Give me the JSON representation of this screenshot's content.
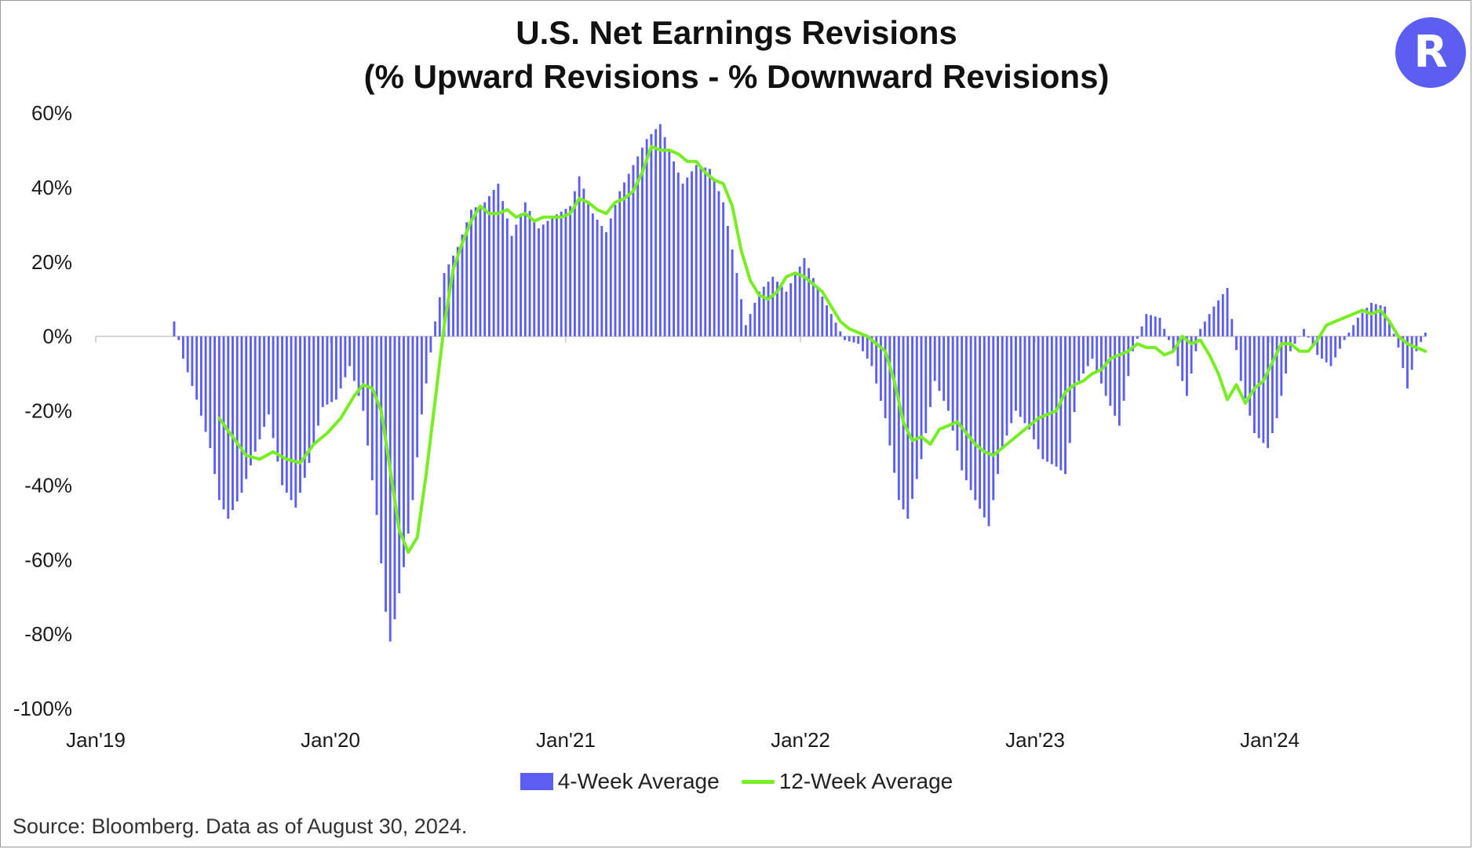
{
  "title_line1": "U.S. Net Earnings Revisions",
  "title_line2": "(% Upward Revisions - % Downward Revisions)",
  "logo_letter": "R",
  "logo_color": "#5b5ef0",
  "source": "Source: Bloomberg. Data as of August 30, 2024.",
  "chart_data": {
    "type": "bar",
    "xlabel": "",
    "ylabel": "",
    "ylim": [
      -100,
      60
    ],
    "yticks": [
      60,
      40,
      20,
      0,
      -20,
      -40,
      -60,
      -80,
      -100
    ],
    "ytick_labels": [
      "60%",
      "40%",
      "20%",
      "0%",
      "-20%",
      "-40%",
      "-60%",
      "-80%",
      "-100%"
    ],
    "xlim": [
      "2019-01-01",
      "2024-09-01"
    ],
    "xticks": [
      "2019-01-01",
      "2020-01-01",
      "2021-01-01",
      "2022-01-01",
      "2023-01-01",
      "2024-01-01"
    ],
    "xtick_labels": [
      "Jan'19",
      "Jan'20",
      "Jan'21",
      "Jan'22",
      "Jan'23",
      "Jan'24"
    ],
    "legend_position": "bottom",
    "grid": false,
    "series": [
      {
        "name": "4-Week Average",
        "kind": "bar",
        "color": "#5b5ef0",
        "points": [
          [
            "2019-05-03",
            4
          ],
          [
            "2019-05-17",
            -6
          ],
          [
            "2019-06-07",
            -17
          ],
          [
            "2019-06-28",
            -30
          ],
          [
            "2019-07-12",
            -44
          ],
          [
            "2019-07-26",
            -49
          ],
          [
            "2019-08-16",
            -42
          ],
          [
            "2019-09-06",
            -31
          ],
          [
            "2019-09-27",
            -21
          ],
          [
            "2019-10-18",
            -40
          ],
          [
            "2019-11-08",
            -46
          ],
          [
            "2019-11-29",
            -34
          ],
          [
            "2019-12-20",
            -19
          ],
          [
            "2020-01-10",
            -17
          ],
          [
            "2020-01-31",
            -8
          ],
          [
            "2020-02-21",
            -20
          ],
          [
            "2020-03-13",
            -48
          ],
          [
            "2020-03-27",
            -74
          ],
          [
            "2020-04-03",
            -82
          ],
          [
            "2020-04-10",
            -76
          ],
          [
            "2020-04-24",
            -62
          ],
          [
            "2020-05-08",
            -44
          ],
          [
            "2020-05-22",
            -21
          ],
          [
            "2020-06-12",
            4
          ],
          [
            "2020-06-26",
            17
          ],
          [
            "2020-07-17",
            24
          ],
          [
            "2020-08-07",
            34
          ],
          [
            "2020-08-28",
            36
          ],
          [
            "2020-09-18",
            41
          ],
          [
            "2020-10-09",
            27
          ],
          [
            "2020-10-30",
            36
          ],
          [
            "2020-11-20",
            29
          ],
          [
            "2020-12-11",
            32
          ],
          [
            "2021-01-08",
            35
          ],
          [
            "2021-01-22",
            43
          ],
          [
            "2021-02-12",
            33
          ],
          [
            "2021-03-05",
            28
          ],
          [
            "2021-03-26",
            39
          ],
          [
            "2021-04-16",
            46
          ],
          [
            "2021-05-07",
            53
          ],
          [
            "2021-05-28",
            57
          ],
          [
            "2021-06-11",
            50
          ],
          [
            "2021-07-02",
            41
          ],
          [
            "2021-07-23",
            46
          ],
          [
            "2021-08-13",
            45
          ],
          [
            "2021-09-03",
            36
          ],
          [
            "2021-09-24",
            17
          ],
          [
            "2021-10-08",
            3
          ],
          [
            "2021-10-29",
            12
          ],
          [
            "2021-11-19",
            16
          ],
          [
            "2021-12-10",
            12
          ],
          [
            "2022-01-07",
            21
          ],
          [
            "2022-01-28",
            13
          ],
          [
            "2022-02-18",
            6
          ],
          [
            "2022-03-11",
            -1
          ],
          [
            "2022-04-01",
            -2
          ],
          [
            "2022-04-22",
            -8
          ],
          [
            "2022-05-13",
            -22
          ],
          [
            "2022-06-03",
            -44
          ],
          [
            "2022-06-17",
            -49
          ],
          [
            "2022-07-08",
            -33
          ],
          [
            "2022-07-29",
            -12
          ],
          [
            "2022-08-19",
            -20
          ],
          [
            "2022-09-09",
            -36
          ],
          [
            "2022-09-30",
            -44
          ],
          [
            "2022-10-21",
            -51
          ],
          [
            "2022-11-11",
            -30
          ],
          [
            "2022-12-02",
            -20
          ],
          [
            "2022-12-23",
            -25
          ],
          [
            "2023-01-13",
            -33
          ],
          [
            "2023-02-03",
            -35
          ],
          [
            "2023-02-17",
            -37
          ],
          [
            "2023-03-10",
            -12
          ],
          [
            "2023-03-31",
            -6
          ],
          [
            "2023-04-21",
            -16
          ],
          [
            "2023-05-12",
            -24
          ],
          [
            "2023-06-02",
            -4
          ],
          [
            "2023-06-23",
            6
          ],
          [
            "2023-07-14",
            5
          ],
          [
            "2023-08-04",
            -4
          ],
          [
            "2023-08-25",
            -16
          ],
          [
            "2023-09-15",
            2
          ],
          [
            "2023-10-06",
            8
          ],
          [
            "2023-10-27",
            13
          ],
          [
            "2023-11-17",
            -12
          ],
          [
            "2023-12-08",
            -26
          ],
          [
            "2023-12-29",
            -30
          ],
          [
            "2024-01-12",
            -22
          ],
          [
            "2024-02-02",
            -4
          ],
          [
            "2024-02-23",
            2
          ],
          [
            "2024-03-15",
            -5
          ],
          [
            "2024-04-05",
            -8
          ],
          [
            "2024-04-26",
            -1
          ],
          [
            "2024-05-17",
            5
          ],
          [
            "2024-06-07",
            9
          ],
          [
            "2024-06-28",
            8
          ],
          [
            "2024-07-19",
            -3
          ],
          [
            "2024-08-02",
            -14
          ],
          [
            "2024-08-16",
            -4
          ],
          [
            "2024-08-30",
            1
          ]
        ]
      },
      {
        "name": "12-Week Average",
        "kind": "line",
        "color": "#77ee22",
        "points": [
          [
            "2019-07-12",
            -22
          ],
          [
            "2019-08-02",
            -27
          ],
          [
            "2019-08-23",
            -32
          ],
          [
            "2019-09-13",
            -33
          ],
          [
            "2019-10-04",
            -31
          ],
          [
            "2019-10-25",
            -33
          ],
          [
            "2019-11-15",
            -34
          ],
          [
            "2019-12-06",
            -29
          ],
          [
            "2019-12-27",
            -26
          ],
          [
            "2020-01-17",
            -22
          ],
          [
            "2020-02-07",
            -16
          ],
          [
            "2020-02-21",
            -13
          ],
          [
            "2020-03-06",
            -14
          ],
          [
            "2020-03-20",
            -20
          ],
          [
            "2020-04-03",
            -36
          ],
          [
            "2020-04-17",
            -52
          ],
          [
            "2020-05-01",
            -58
          ],
          [
            "2020-05-15",
            -54
          ],
          [
            "2020-05-29",
            -37
          ],
          [
            "2020-06-12",
            -17
          ],
          [
            "2020-06-26",
            3
          ],
          [
            "2020-07-10",
            18
          ],
          [
            "2020-07-24",
            25
          ],
          [
            "2020-08-07",
            31
          ],
          [
            "2020-08-21",
            35
          ],
          [
            "2020-09-04",
            33
          ],
          [
            "2020-09-18",
            33
          ],
          [
            "2020-10-02",
            34
          ],
          [
            "2020-10-16",
            32
          ],
          [
            "2020-10-30",
            33
          ],
          [
            "2020-11-13",
            31
          ],
          [
            "2020-11-27",
            32
          ],
          [
            "2020-12-11",
            32
          ],
          [
            "2020-12-25",
            32
          ],
          [
            "2021-01-08",
            33
          ],
          [
            "2021-01-22",
            37
          ],
          [
            "2021-02-05",
            36
          ],
          [
            "2021-02-19",
            34
          ],
          [
            "2021-03-05",
            33
          ],
          [
            "2021-03-19",
            36
          ],
          [
            "2021-04-02",
            37
          ],
          [
            "2021-04-16",
            39
          ],
          [
            "2021-04-30",
            44
          ],
          [
            "2021-05-14",
            51
          ],
          [
            "2021-05-28",
            50
          ],
          [
            "2021-06-11",
            50
          ],
          [
            "2021-06-25",
            49
          ],
          [
            "2021-07-09",
            47
          ],
          [
            "2021-07-23",
            47
          ],
          [
            "2021-08-06",
            44
          ],
          [
            "2021-08-20",
            42
          ],
          [
            "2021-09-03",
            41
          ],
          [
            "2021-09-17",
            35
          ],
          [
            "2021-10-01",
            23
          ],
          [
            "2021-10-15",
            15
          ],
          [
            "2021-10-29",
            11
          ],
          [
            "2021-11-12",
            10
          ],
          [
            "2021-11-26",
            12
          ],
          [
            "2021-12-10",
            16
          ],
          [
            "2021-12-24",
            17
          ],
          [
            "2022-01-07",
            16
          ],
          [
            "2022-01-21",
            14
          ],
          [
            "2022-02-04",
            12
          ],
          [
            "2022-02-18",
            8
          ],
          [
            "2022-03-04",
            4
          ],
          [
            "2022-03-18",
            2
          ],
          [
            "2022-04-01",
            1
          ],
          [
            "2022-04-15",
            0
          ],
          [
            "2022-04-29",
            -2
          ],
          [
            "2022-05-13",
            -4
          ],
          [
            "2022-05-27",
            -12
          ],
          [
            "2022-06-10",
            -23
          ],
          [
            "2022-06-24",
            -28
          ],
          [
            "2022-07-08",
            -27
          ],
          [
            "2022-07-22",
            -29
          ],
          [
            "2022-08-05",
            -25
          ],
          [
            "2022-08-19",
            -24
          ],
          [
            "2022-09-02",
            -23
          ],
          [
            "2022-09-16",
            -26
          ],
          [
            "2022-09-30",
            -29
          ],
          [
            "2022-10-14",
            -31
          ],
          [
            "2022-10-28",
            -32
          ],
          [
            "2022-11-11",
            -30
          ],
          [
            "2022-11-25",
            -28
          ],
          [
            "2022-12-09",
            -26
          ],
          [
            "2022-12-23",
            -24
          ],
          [
            "2023-01-06",
            -22
          ],
          [
            "2023-01-20",
            -21
          ],
          [
            "2023-02-03",
            -20
          ],
          [
            "2023-02-17",
            -15
          ],
          [
            "2023-03-03",
            -13
          ],
          [
            "2023-03-17",
            -12
          ],
          [
            "2023-03-31",
            -10
          ],
          [
            "2023-04-14",
            -9
          ],
          [
            "2023-04-28",
            -6
          ],
          [
            "2023-05-12",
            -5
          ],
          [
            "2023-05-26",
            -4
          ],
          [
            "2023-06-09",
            -2
          ],
          [
            "2023-06-23",
            -3
          ],
          [
            "2023-07-07",
            -3
          ],
          [
            "2023-07-21",
            -5
          ],
          [
            "2023-08-04",
            -4
          ],
          [
            "2023-08-18",
            0
          ],
          [
            "2023-09-01",
            -2
          ],
          [
            "2023-09-15",
            -1
          ],
          [
            "2023-09-29",
            -5
          ],
          [
            "2023-10-13",
            -10
          ],
          [
            "2023-10-27",
            -17
          ],
          [
            "2023-11-10",
            -13
          ],
          [
            "2023-11-24",
            -18
          ],
          [
            "2023-12-08",
            -14
          ],
          [
            "2023-12-22",
            -12
          ],
          [
            "2024-01-05",
            -7
          ],
          [
            "2024-01-19",
            -2
          ],
          [
            "2024-02-02",
            -2
          ],
          [
            "2024-02-16",
            -4
          ],
          [
            "2024-03-01",
            -4
          ],
          [
            "2024-03-15",
            -1
          ],
          [
            "2024-03-29",
            3
          ],
          [
            "2024-04-12",
            4
          ],
          [
            "2024-04-26",
            5
          ],
          [
            "2024-05-10",
            6
          ],
          [
            "2024-05-24",
            7
          ],
          [
            "2024-06-07",
            6
          ],
          [
            "2024-06-21",
            7
          ],
          [
            "2024-07-05",
            4
          ],
          [
            "2024-07-19",
            0
          ],
          [
            "2024-08-02",
            -2
          ],
          [
            "2024-08-16",
            -3
          ],
          [
            "2024-08-30",
            -4
          ]
        ]
      }
    ]
  }
}
